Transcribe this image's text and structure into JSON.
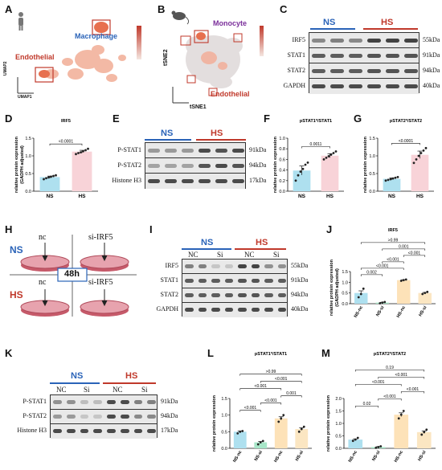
{
  "panels": {
    "A": {
      "letter": "A",
      "ylabel": "UMAP2",
      "xlabel": "UMAP1",
      "label_macrophage": "Macrophage",
      "label_endothelial": "Endothelial"
    },
    "B": {
      "letter": "B",
      "ylabel": "tSNE2",
      "xlabel": "tSNE1",
      "label_monocyte": "Monocyte",
      "label_endothelial": "Endothelial"
    },
    "C": {
      "letter": "C",
      "group_ns": "NS",
      "group_hs": "HS",
      "rows": [
        {
          "name": "IRF5",
          "kda": "55kDa"
        },
        {
          "name": "STAT1",
          "kda": "91kDa"
        },
        {
          "name": "STAT2",
          "kda": "94kDa"
        },
        {
          "name": "GAPDH",
          "kda": "40kDa"
        }
      ]
    },
    "E": {
      "letter": "E",
      "group_ns": "NS",
      "group_hs": "HS",
      "rows": [
        {
          "name": "P-STAT1",
          "kda": "91kDa"
        },
        {
          "name": "P-STAT2",
          "kda": "94kDa"
        },
        {
          "name": "Histone H3",
          "kda": "17kDa"
        }
      ]
    },
    "H": {
      "letter": "H",
      "ns": "NS",
      "hs": "HS",
      "nc1": "nc",
      "nc2": "nc",
      "si1": "si-IRF5",
      "si2": "si-IRF5",
      "time": "48h"
    },
    "I": {
      "letter": "I",
      "group_ns": "NS",
      "group_hs": "HS",
      "sub_nc1": "NC",
      "sub_si1": "Si",
      "sub_nc2": "NC",
      "sub_si2": "Si",
      "rows": [
        {
          "name": "IRF5",
          "kda": "55kDa"
        },
        {
          "name": "STAT1",
          "kda": "91kDa"
        },
        {
          "name": "STAT2",
          "kda": "94kDa"
        },
        {
          "name": "GAPDH",
          "kda": "40kDa"
        }
      ]
    },
    "K": {
      "letter": "K",
      "group_ns": "NS",
      "group_hs": "HS",
      "sub_nc1": "NC",
      "sub_si1": "Si",
      "sub_nc2": "NC",
      "sub_si2": "Si",
      "rows": [
        {
          "name": "P-STAT1",
          "kda": "91kDa"
        },
        {
          "name": "P-STAT2",
          "kda": "94kDa"
        },
        {
          "name": "Histone H3",
          "kda": "17kDa"
        }
      ]
    }
  },
  "chart_data": [
    {
      "id": "D",
      "type": "bar",
      "title": "IRF5",
      "ylabel": "relative protein expression\n(GADPH adjusted)",
      "categories": [
        "NS",
        "HS"
      ],
      "values": [
        0.4,
        1.12
      ],
      "ylim": [
        0,
        1.5
      ],
      "yticks": [
        0.0,
        0.5,
        1.0,
        1.5
      ],
      "colors": [
        "#aee0ef",
        "#f8d3d8"
      ],
      "points": [
        [
          0.34,
          0.37,
          0.39,
          0.41,
          0.43,
          0.45
        ],
        [
          1.05,
          1.08,
          1.1,
          1.13,
          1.16,
          1.2
        ]
      ],
      "comparisons": [
        {
          "from": 0,
          "to": 1,
          "label": "<0.0001"
        }
      ]
    },
    {
      "id": "F",
      "type": "bar",
      "title": "pSTAT1*/STAT1",
      "ylabel": "relative protein expression",
      "categories": [
        "NS",
        "HS"
      ],
      "values": [
        0.39,
        0.67
      ],
      "ylim": [
        0,
        1.0
      ],
      "yticks": [
        0.0,
        0.2,
        0.4,
        0.6,
        0.8,
        1.0
      ],
      "colors": [
        "#aee0ef",
        "#f8d3d8"
      ],
      "points": [
        [
          0.2,
          0.3,
          0.37,
          0.42,
          0.5,
          0.54
        ],
        [
          0.6,
          0.63,
          0.66,
          0.69,
          0.72,
          0.75
        ]
      ],
      "comparisons": [
        {
          "from": 0,
          "to": 1,
          "label": "0.0011"
        }
      ]
    },
    {
      "id": "G",
      "type": "bar",
      "title": "pSTAT2*/STAT2",
      "ylabel": "relative protein expression",
      "categories": [
        "NS",
        "HS"
      ],
      "values": [
        0.35,
        1.03
      ],
      "ylim": [
        0,
        1.5
      ],
      "yticks": [
        0.0,
        0.5,
        1.0,
        1.5
      ],
      "colors": [
        "#aee0ef",
        "#f8d3d8"
      ],
      "points": [
        [
          0.3,
          0.32,
          0.34,
          0.36,
          0.38,
          0.4
        ],
        [
          0.8,
          0.9,
          1.0,
          1.08,
          1.15,
          1.22
        ]
      ],
      "comparisons": [
        {
          "from": 0,
          "to": 1,
          "label": "<0.0001"
        }
      ]
    },
    {
      "id": "J",
      "type": "bar",
      "title": "IRF5",
      "ylabel": "relative protein expression\n(GADPH adjusted)",
      "categories": [
        "NS-nc",
        "NS-si",
        "HS-nc",
        "HS-si"
      ],
      "values": [
        0.5,
        0.05,
        1.1,
        0.5
      ],
      "ylim": [
        0,
        1.5
      ],
      "yticks": [
        0.0,
        0.5,
        1.0,
        1.5
      ],
      "colors": [
        "#aee0ef",
        "#a8e6c8",
        "#fde2b8",
        "#fbe6c2"
      ],
      "points": [
        [
          0.3,
          0.45,
          0.7
        ],
        [
          0.02,
          0.05,
          0.08
        ],
        [
          1.07,
          1.1,
          1.13
        ],
        [
          0.45,
          0.5,
          0.55
        ]
      ],
      "comparisons": [
        {
          "from": 0,
          "to": 1,
          "label": "0.002"
        },
        {
          "from": 0,
          "to": 2,
          "label": "<0.001"
        },
        {
          "from": 1,
          "to": 2,
          "label": "<0.001"
        },
        {
          "from": 2,
          "to": 3,
          "label": "<0.001"
        },
        {
          "from": 1,
          "to": 3,
          "label": "0.001"
        },
        {
          "from": 0,
          "to": 3,
          "label": ">0.99"
        }
      ]
    },
    {
      "id": "L",
      "type": "bar",
      "title": "pSTAT1*/STAT1",
      "ylabel": "relative protein expression",
      "categories": [
        "NS-nc",
        "NS-si",
        "HS-nc",
        "HS-si"
      ],
      "values": [
        0.5,
        0.18,
        0.9,
        0.58
      ],
      "ylim": [
        0,
        1.5
      ],
      "yticks": [
        0.0,
        0.5,
        1.0,
        1.5
      ],
      "colors": [
        "#aee0ef",
        "#a8e6c8",
        "#fde2b8",
        "#fbe6c2"
      ],
      "points": [
        [
          0.45,
          0.5,
          0.52
        ],
        [
          0.12,
          0.18,
          0.22
        ],
        [
          0.8,
          0.9,
          1.0
        ],
        [
          0.5,
          0.58,
          0.65
        ]
      ],
      "comparisons": [
        {
          "from": 0,
          "to": 1,
          "label": "<0.001"
        },
        {
          "from": 1,
          "to": 2,
          "label": "<0.001"
        },
        {
          "from": 2,
          "to": 3,
          "label": "0.001"
        },
        {
          "from": 0,
          "to": 2,
          "label": "<0.001"
        },
        {
          "from": 1,
          "to": 3,
          "label": "<0.001"
        },
        {
          "from": 0,
          "to": 3,
          "label": ">0.99"
        }
      ]
    },
    {
      "id": "M",
      "type": "bar",
      "title": "pSTAT2*/STAT2",
      "ylabel": "relative protein expression",
      "categories": [
        "NS-nc",
        "NS-si",
        "HS-nc",
        "HS-si"
      ],
      "values": [
        0.35,
        0.05,
        1.35,
        0.65
      ],
      "ylim": [
        0,
        2.0
      ],
      "yticks": [
        0.0,
        0.5,
        1.0,
        1.5,
        2.0
      ],
      "colors": [
        "#aee0ef",
        "#a8e6c8",
        "#fde2b8",
        "#fbe6c2"
      ],
      "points": [
        [
          0.3,
          0.35,
          0.42
        ],
        [
          0.02,
          0.05,
          0.08
        ],
        [
          1.2,
          1.35,
          1.5
        ],
        [
          0.55,
          0.65,
          0.75
        ]
      ],
      "comparisons": [
        {
          "from": 0,
          "to": 1,
          "label": "0.02"
        },
        {
          "from": 1,
          "to": 2,
          "label": "<0.001"
        },
        {
          "from": 2,
          "to": 3,
          "label": "<0.001"
        },
        {
          "from": 0,
          "to": 2,
          "label": "<0.001"
        },
        {
          "from": 1,
          "to": 3,
          "label": "<0.001"
        },
        {
          "from": 0,
          "to": 3,
          "label": "0.19"
        }
      ]
    }
  ]
}
